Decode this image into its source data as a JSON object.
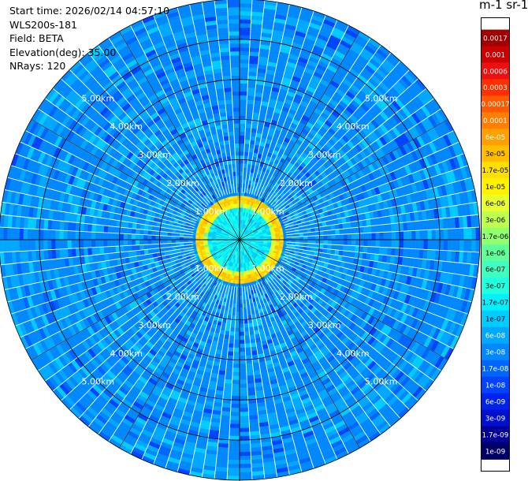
{
  "info": {
    "start_time": "Start time: 2026/02/14 04:57:10",
    "instrument": "WLS200s-181",
    "field": "Field: BETA",
    "elevation": "Elevation(deg): 35.00",
    "nrays": "NRays: 120"
  },
  "colorbar": {
    "unit_label": "m-1 sr-1",
    "levels": [
      {
        "label": "0.0017",
        "color": "#a00000"
      },
      {
        "label": "0.001",
        "color": "#cc0000"
      },
      {
        "label": "0.0006",
        "color": "#ee1010"
      },
      {
        "label": "0.0003",
        "color": "#ff3000"
      },
      {
        "label": "0.00017",
        "color": "#ff5a00"
      },
      {
        "label": "0.0001",
        "color": "#ff7f00"
      },
      {
        "label": "6e-05",
        "color": "#ff9f00"
      },
      {
        "label": "3e-05",
        "color": "#ffbf00"
      },
      {
        "label": "1.7e-05",
        "color": "#ffdf00"
      },
      {
        "label": "1e-05",
        "color": "#fff200"
      },
      {
        "label": "6e-06",
        "color": "#e8ff30"
      },
      {
        "label": "3e-06",
        "color": "#bfff50"
      },
      {
        "label": "1.7e-06",
        "color": "#90ff70"
      },
      {
        "label": "1e-06",
        "color": "#60ff9a"
      },
      {
        "label": "6e-07",
        "color": "#3fffc0"
      },
      {
        "label": "3e-07",
        "color": "#20ffe0"
      },
      {
        "label": "1.7e-07",
        "color": "#00f0ff"
      },
      {
        "label": "1e-07",
        "color": "#00ccff"
      },
      {
        "label": "6e-08",
        "color": "#00a8ff"
      },
      {
        "label": "3e-08",
        "color": "#0088ff"
      },
      {
        "label": "1.7e-08",
        "color": "#0066ff"
      },
      {
        "label": "1e-08",
        "color": "#0044ff"
      },
      {
        "label": "6e-09",
        "color": "#0022ee"
      },
      {
        "label": "3e-09",
        "color": "#0010cc"
      },
      {
        "label": "1.7e-09",
        "color": "#000099"
      },
      {
        "label": "1e-09",
        "color": "#000066"
      }
    ]
  },
  "chart_data": {
    "type": "heatmap",
    "projection": "polar",
    "n_rays": 120,
    "elevation_deg": 35.0,
    "max_range_km": 6.0,
    "range_rings_km": [
      1,
      2,
      3,
      4,
      5,
      6
    ],
    "range_ring_labels": [
      "1.00km",
      "2.00km",
      "3.00km",
      "4.00km",
      "5.00km"
    ],
    "label_azimuths_deg": [
      45,
      135,
      225,
      315
    ],
    "spoke_step_deg": 30,
    "aerosol_layer_km": [
      0.8,
      1.05
    ],
    "background_level": "3e-08",
    "grid": true
  }
}
